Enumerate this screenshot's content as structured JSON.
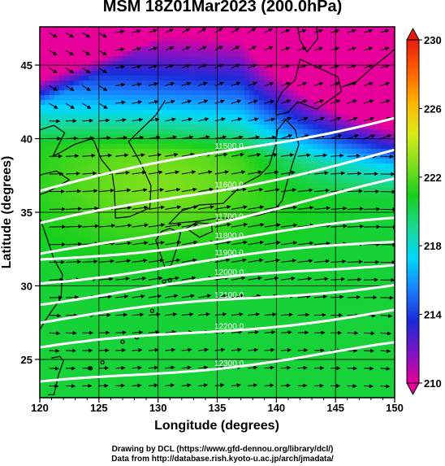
{
  "chart_data": {
    "type": "heatmap",
    "title": "MSM 18Z01Mar2023 (200.0hPa)",
    "xlabel": "Longitude (degrees)",
    "ylabel": "Latitude  (degrees)",
    "xlim": [
      120,
      150
    ],
    "ylim": [
      22.4,
      47.6
    ],
    "x_ticks": [
      120,
      125,
      130,
      135,
      140,
      145,
      150
    ],
    "y_ticks": [
      25,
      30,
      35,
      40,
      45
    ],
    "colorbar": {
      "min": 210,
      "max": 230,
      "ticks": [
        210,
        214,
        218,
        222,
        226,
        230
      ],
      "extend": "both",
      "colors": [
        "#e8009a",
        "#7a14c8",
        "#1a2ad8",
        "#1a80ff",
        "#00d8ff",
        "#1ad890",
        "#16d01e",
        "#7ee01c",
        "#dcec16",
        "#ffb400",
        "#ff6000",
        "#e81c10"
      ]
    },
    "contour_levels": [
      {
        "label": "11500.0",
        "lat": 39.0
      },
      {
        "label": "11600.0",
        "lat": 36.6
      },
      {
        "label": "11700.0",
        "lat": 34.5
      },
      {
        "label": "11800.0",
        "lat": 33.1
      },
      {
        "label": "11900.0",
        "lat": 31.7
      },
      {
        "label": "12000.0",
        "lat": 30.3
      },
      {
        "label": "12100.0",
        "lat": 28.9
      },
      {
        "label": "12200.0",
        "lat": 27.0
      },
      {
        "label": "12300.0",
        "lat": 24.6
      }
    ],
    "field_description": "colour shading shows temperature (K); arrows show wind vectors; white contours show geopotential height"
  },
  "footer": {
    "credit_line1": "Drawing by DCL (https://www.gfd-dennou.org/library/dcl/)",
    "credit_line2": "Data from http://database.rish.kyoto-u.ac.jp/arch/jmadata/"
  }
}
